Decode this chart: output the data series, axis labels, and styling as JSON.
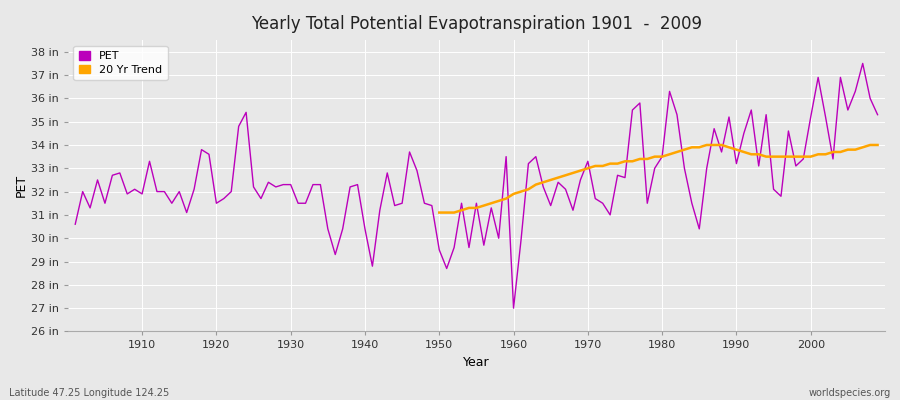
{
  "title": "Yearly Total Potential Evapotranspiration 1901  -  2009",
  "xlabel": "Year",
  "ylabel": "PET",
  "footnote_left": "Latitude 47.25 Longitude 124.25",
  "footnote_right": "worldspecies.org",
  "pet_color": "#BB00BB",
  "trend_color": "#FFA500",
  "background_color": "#E8E8E8",
  "fig_facecolor": "#E8E8E8",
  "ylim": [
    26,
    38.5
  ],
  "yticks": [
    26,
    27,
    28,
    29,
    30,
    31,
    32,
    33,
    34,
    35,
    36,
    37,
    38
  ],
  "xlim": [
    1900,
    2010
  ],
  "xticks": [
    1910,
    1920,
    1930,
    1940,
    1950,
    1960,
    1970,
    1980,
    1990,
    2000
  ],
  "years": [
    1901,
    1902,
    1903,
    1904,
    1905,
    1906,
    1907,
    1908,
    1909,
    1910,
    1911,
    1912,
    1913,
    1914,
    1915,
    1916,
    1917,
    1918,
    1919,
    1920,
    1921,
    1922,
    1923,
    1924,
    1925,
    1926,
    1927,
    1928,
    1929,
    1930,
    1931,
    1932,
    1933,
    1934,
    1935,
    1936,
    1937,
    1938,
    1939,
    1940,
    1941,
    1942,
    1943,
    1944,
    1945,
    1946,
    1947,
    1948,
    1949,
    1950,
    1951,
    1952,
    1953,
    1954,
    1955,
    1956,
    1957,
    1958,
    1959,
    1960,
    1961,
    1962,
    1963,
    1964,
    1965,
    1966,
    1967,
    1968,
    1969,
    1970,
    1971,
    1972,
    1973,
    1974,
    1975,
    1976,
    1977,
    1978,
    1979,
    1980,
    1981,
    1982,
    1983,
    1984,
    1985,
    1986,
    1987,
    1988,
    1989,
    1990,
    1991,
    1992,
    1993,
    1994,
    1995,
    1996,
    1997,
    1998,
    1999,
    2000,
    2001,
    2002,
    2003,
    2004,
    2005,
    2006,
    2007,
    2008,
    2009
  ],
  "pet_values": [
    30.6,
    32.0,
    31.3,
    32.5,
    31.5,
    32.7,
    32.8,
    31.9,
    32.1,
    31.9,
    33.3,
    32.0,
    32.0,
    31.5,
    32.0,
    31.1,
    32.1,
    33.8,
    33.6,
    31.5,
    31.7,
    32.0,
    34.8,
    35.4,
    32.2,
    31.7,
    32.4,
    32.2,
    32.3,
    32.3,
    31.5,
    31.5,
    32.3,
    32.3,
    30.4,
    29.3,
    30.4,
    32.2,
    32.3,
    30.4,
    28.8,
    31.2,
    32.8,
    31.4,
    31.5,
    33.7,
    32.9,
    31.5,
    31.4,
    29.5,
    28.7,
    29.6,
    31.5,
    29.6,
    31.5,
    29.7,
    31.3,
    30.0,
    33.5,
    27.0,
    29.9,
    33.2,
    33.5,
    32.2,
    31.4,
    32.4,
    32.1,
    31.2,
    32.5,
    33.3,
    31.7,
    31.5,
    31.0,
    32.7,
    32.6,
    35.5,
    35.8,
    31.5,
    33.0,
    33.5,
    36.3,
    35.3,
    33.0,
    31.5,
    30.4,
    33.0,
    34.7,
    33.7,
    35.2,
    33.2,
    34.5,
    35.5,
    33.1,
    35.3,
    32.1,
    31.8,
    34.6,
    33.1,
    33.4,
    35.2,
    36.9,
    35.2,
    33.4,
    36.9,
    35.5,
    36.3,
    37.5,
    36.0,
    35.3
  ],
  "trend_years": [
    1950,
    1951,
    1952,
    1953,
    1954,
    1955,
    1956,
    1957,
    1958,
    1959,
    1960,
    1961,
    1962,
    1963,
    1964,
    1965,
    1966,
    1967,
    1968,
    1969,
    1970,
    1971,
    1972,
    1973,
    1974,
    1975,
    1976,
    1977,
    1978,
    1979,
    1980,
    1981,
    1982,
    1983,
    1984,
    1985,
    1986,
    1987,
    1988,
    1989,
    1990,
    1991,
    1992,
    1993,
    1994,
    1995,
    1996,
    1997,
    1998,
    1999,
    2000,
    2001,
    2002,
    2003,
    2004,
    2005,
    2006,
    2007,
    2008,
    2009
  ],
  "trend_values": [
    31.1,
    31.1,
    31.1,
    31.2,
    31.3,
    31.3,
    31.4,
    31.5,
    31.6,
    31.7,
    31.9,
    32.0,
    32.1,
    32.3,
    32.4,
    32.5,
    32.6,
    32.7,
    32.8,
    32.9,
    33.0,
    33.1,
    33.1,
    33.2,
    33.2,
    33.3,
    33.3,
    33.4,
    33.4,
    33.5,
    33.5,
    33.6,
    33.7,
    33.8,
    33.9,
    33.9,
    34.0,
    34.0,
    34.0,
    33.9,
    33.8,
    33.7,
    33.6,
    33.6,
    33.5,
    33.5,
    33.5,
    33.5,
    33.5,
    33.5,
    33.5,
    33.6,
    33.6,
    33.7,
    33.7,
    33.8,
    33.8,
    33.9,
    34.0,
    34.0
  ]
}
